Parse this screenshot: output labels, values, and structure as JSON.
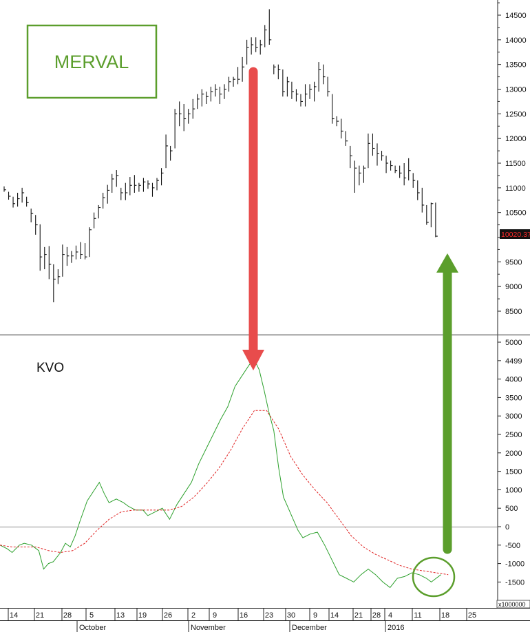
{
  "chart_data": [
    {
      "type": "ohlc",
      "title": "MERVAL",
      "last_value": "10020.37",
      "ylim": [
        8000,
        14800
      ],
      "y_ticks": [
        8500,
        9000,
        9500,
        10000,
        10500,
        11000,
        11500,
        12000,
        12500,
        13000,
        13500,
        14000,
        14500
      ],
      "y_tick_labels": [
        "8500",
        "9000",
        "9500",
        "",
        "10500",
        "11000",
        "11500",
        "12000",
        "12500",
        "13000",
        "13500",
        "14000",
        "14500"
      ],
      "bars": [
        [
          0,
          11030,
          10920,
          10960
        ],
        [
          1,
          10920,
          10760,
          10830
        ],
        [
          2,
          10820,
          10600,
          10680
        ],
        [
          3,
          10900,
          10620,
          10780
        ],
        [
          4,
          11000,
          10700,
          10900
        ],
        [
          5,
          10820,
          10620,
          10700
        ],
        [
          6,
          10580,
          10300,
          10480
        ],
        [
          7,
          10450,
          10050,
          10250
        ],
        [
          8,
          10260,
          9320,
          9600
        ],
        [
          9,
          9800,
          9350,
          9650
        ],
        [
          10,
          9820,
          9150,
          9450
        ],
        [
          11,
          9450,
          8680,
          9150
        ],
        [
          12,
          9350,
          9050,
          9200
        ],
        [
          13,
          9850,
          9200,
          9650
        ],
        [
          14,
          9800,
          9420,
          9620
        ],
        [
          15,
          9720,
          9480,
          9620
        ],
        [
          16,
          9830,
          9550,
          9700
        ],
        [
          17,
          9900,
          9560,
          9650
        ],
        [
          18,
          9880,
          9550,
          9600
        ],
        [
          19,
          10200,
          9600,
          10150
        ],
        [
          20,
          10500,
          10180,
          10380
        ],
        [
          21,
          10650,
          10380,
          10600
        ],
        [
          22,
          10900,
          10580,
          10800
        ],
        [
          23,
          11060,
          10680,
          10950
        ],
        [
          24,
          11280,
          10900,
          11180
        ],
        [
          25,
          11360,
          11020,
          11250
        ],
        [
          26,
          11000,
          10750,
          10900
        ],
        [
          27,
          11100,
          10750,
          10900
        ],
        [
          28,
          11220,
          10850,
          11050
        ],
        [
          29,
          11260,
          10900,
          11050
        ],
        [
          30,
          11100,
          10920,
          11050
        ],
        [
          31,
          11200,
          10920,
          11120
        ],
        [
          32,
          11150,
          10980,
          11080
        ],
        [
          33,
          11100,
          10820,
          11000
        ],
        [
          34,
          11200,
          10950,
          11150
        ],
        [
          35,
          11400,
          11050,
          11300
        ],
        [
          36,
          12080,
          11400,
          11850
        ],
        [
          37,
          11850,
          11550,
          11750
        ],
        [
          38,
          12600,
          11800,
          12500
        ],
        [
          39,
          12750,
          12250,
          12500
        ],
        [
          40,
          12700,
          12150,
          12400
        ],
        [
          41,
          12600,
          12300,
          12500
        ],
        [
          42,
          12800,
          12400,
          12600
        ],
        [
          43,
          12900,
          12600,
          12800
        ],
        [
          44,
          13000,
          12650,
          12900
        ],
        [
          45,
          12950,
          12700,
          12850
        ],
        [
          46,
          13050,
          12750,
          12950
        ],
        [
          47,
          13100,
          12850,
          13000
        ],
        [
          48,
          13050,
          12700,
          12900
        ],
        [
          49,
          13100,
          12800,
          13000
        ],
        [
          50,
          13250,
          12950,
          13150
        ],
        [
          51,
          13250,
          13050,
          13200
        ],
        [
          52,
          13450,
          13100,
          13200
        ],
        [
          53,
          13650,
          13150,
          13450
        ],
        [
          54,
          14000,
          13500,
          13850
        ],
        [
          55,
          14050,
          13700,
          13900
        ],
        [
          56,
          14050,
          13750,
          13850
        ],
        [
          57,
          14000,
          13700,
          13900
        ],
        [
          58,
          14300,
          13850,
          14200
        ],
        [
          59,
          14620,
          13900,
          14000
        ],
        [
          60,
          13500,
          13300,
          13450
        ],
        [
          61,
          13500,
          13200,
          13400
        ],
        [
          62,
          13400,
          12850,
          12950
        ],
        [
          63,
          13250,
          12850,
          13150
        ],
        [
          64,
          13150,
          12800,
          12950
        ],
        [
          65,
          13000,
          12750,
          12900
        ],
        [
          66,
          12900,
          12650,
          12750
        ],
        [
          67,
          13100,
          12650,
          12900
        ],
        [
          68,
          13100,
          12800,
          13000
        ],
        [
          69,
          13150,
          12750,
          13050
        ],
        [
          70,
          13550,
          12950,
          13400
        ],
        [
          71,
          13500,
          13100,
          13250
        ],
        [
          72,
          13250,
          12850,
          12950
        ],
        [
          73,
          12900,
          12300,
          12400
        ],
        [
          74,
          12450,
          12250,
          12350
        ],
        [
          75,
          12400,
          12000,
          12150
        ],
        [
          76,
          12150,
          11850,
          11950
        ],
        [
          77,
          11850,
          11400,
          11650
        ],
        [
          78,
          11550,
          10900,
          11400
        ],
        [
          79,
          11450,
          11050,
          11300
        ],
        [
          80,
          11450,
          11100,
          11400
        ],
        [
          81,
          12100,
          11400,
          11900
        ],
        [
          82,
          12100,
          11650,
          11800
        ],
        [
          83,
          11900,
          11450,
          11700
        ],
        [
          84,
          11750,
          11550,
          11650
        ],
        [
          85,
          11650,
          11300,
          11500
        ],
        [
          86,
          11550,
          11350,
          11450
        ],
        [
          87,
          11450,
          11300,
          11350
        ],
        [
          88,
          11450,
          11200,
          11300
        ],
        [
          89,
          11500,
          11050,
          11200
        ],
        [
          90,
          11600,
          11150,
          11350
        ],
        [
          91,
          11300,
          11000,
          11150
        ],
        [
          92,
          11150,
          10750,
          10900
        ],
        [
          93,
          11000,
          10500,
          10650
        ],
        [
          94,
          10650,
          10250,
          10300
        ],
        [
          95,
          10700,
          10200,
          10680
        ],
        [
          96,
          10700,
          10000,
          10020
        ]
      ]
    },
    {
      "type": "line",
      "title": "KVO",
      "multiplier_label": "x1000000",
      "ylim": [
        -2000,
        5200
      ],
      "y_ticks": [
        -1500,
        -1000,
        -500,
        0,
        500,
        1000,
        1500,
        2000,
        2500,
        3000,
        3500,
        4000,
        4499,
        5000
      ],
      "series": [
        {
          "color": "#2ca02c",
          "style": "solid",
          "points": [
            [
              0,
              -500
            ],
            [
              3,
              -600
            ],
            [
              5,
              -700
            ],
            [
              8,
              -500
            ],
            [
              10,
              -450
            ],
            [
              13,
              -500
            ],
            [
              16,
              -650
            ],
            [
              18,
              -1150
            ],
            [
              20,
              -1000
            ],
            [
              22,
              -950
            ],
            [
              25,
              -700
            ],
            [
              27,
              -450
            ],
            [
              29,
              -550
            ],
            [
              31,
              -250
            ],
            [
              33,
              150
            ],
            [
              36,
              700
            ],
            [
              39,
              1000
            ],
            [
              41,
              1200
            ],
            [
              43,
              900
            ],
            [
              45,
              650
            ],
            [
              48,
              750
            ],
            [
              51,
              650
            ],
            [
              53,
              550
            ],
            [
              56,
              450
            ],
            [
              59,
              450
            ],
            [
              61,
              300
            ],
            [
              64,
              400
            ],
            [
              67,
              500
            ],
            [
              70,
              200
            ],
            [
              73,
              600
            ],
            [
              76,
              900
            ],
            [
              79,
              1200
            ],
            [
              82,
              1700
            ],
            [
              85,
              2100
            ],
            [
              88,
              2500
            ],
            [
              91,
              2900
            ],
            [
              94,
              3250
            ],
            [
              97,
              3800
            ],
            [
              100,
              4100
            ],
            [
              103,
              4400
            ],
            [
              105,
              4520
            ],
            [
              107,
              4250
            ],
            [
              109,
              3700
            ],
            [
              111,
              3100
            ],
            [
              113,
              2600
            ],
            [
              115,
              1600
            ],
            [
              117,
              800
            ],
            [
              119,
              500
            ],
            [
              121,
              200
            ],
            [
              123,
              -100
            ],
            [
              125,
              -300
            ],
            [
              128,
              -200
            ],
            [
              131,
              -150
            ],
            [
              134,
              -500
            ],
            [
              137,
              -900
            ],
            [
              140,
              -1300
            ],
            [
              143,
              -1400
            ],
            [
              146,
              -1500
            ],
            [
              149,
              -1300
            ],
            [
              152,
              -1150
            ],
            [
              155,
              -1300
            ],
            [
              158,
              -1500
            ],
            [
              161,
              -1650
            ],
            [
              164,
              -1400
            ],
            [
              167,
              -1350
            ],
            [
              170,
              -1250
            ],
            [
              173,
              -1300
            ],
            [
              176,
              -1400
            ],
            [
              178,
              -1500
            ],
            [
              180,
              -1400
            ],
            [
              182,
              -1300
            ]
          ]
        },
        {
          "color": "#e02020",
          "style": "dashed",
          "points": [
            [
              0,
              -500
            ],
            [
              5,
              -550
            ],
            [
              10,
              -550
            ],
            [
              15,
              -550
            ],
            [
              20,
              -650
            ],
            [
              25,
              -700
            ],
            [
              30,
              -650
            ],
            [
              35,
              -450
            ],
            [
              40,
              -100
            ],
            [
              45,
              200
            ],
            [
              50,
              400
            ],
            [
              55,
              450
            ],
            [
              60,
              450
            ],
            [
              65,
              450
            ],
            [
              70,
              450
            ],
            [
              75,
              550
            ],
            [
              80,
              800
            ],
            [
              85,
              1150
            ],
            [
              90,
              1550
            ],
            [
              95,
              2050
            ],
            [
              100,
              2650
            ],
            [
              105,
              3150
            ],
            [
              110,
              3150
            ],
            [
              115,
              2650
            ],
            [
              120,
              1900
            ],
            [
              125,
              1400
            ],
            [
              130,
              1000
            ],
            [
              135,
              650
            ],
            [
              140,
              200
            ],
            [
              145,
              -250
            ],
            [
              150,
              -550
            ],
            [
              155,
              -750
            ],
            [
              160,
              -900
            ],
            [
              165,
              -1050
            ],
            [
              170,
              -1150
            ],
            [
              175,
              -1200
            ],
            [
              180,
              -1250
            ],
            [
              185,
              -1300
            ]
          ]
        }
      ]
    }
  ],
  "x_axis": {
    "day_ticks": [
      "14",
      "21",
      "28",
      "5",
      "13",
      "19",
      "26",
      "2",
      "9",
      "16",
      "23",
      "30",
      "9",
      "14",
      "21",
      "28",
      "4",
      "11",
      "18",
      "25"
    ],
    "months": [
      "October",
      "November",
      "December",
      "2016"
    ]
  },
  "annotations": {
    "red_arrow_color": "#e84c4c",
    "green_arrow_color": "#5b9e2c",
    "label_color": "#5b9e2c"
  }
}
